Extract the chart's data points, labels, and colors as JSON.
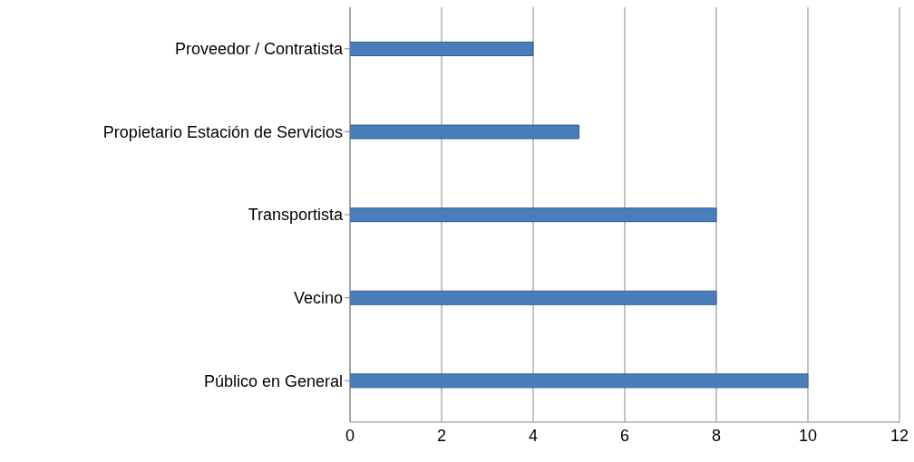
{
  "chart_data": {
    "type": "bar",
    "orientation": "horizontal",
    "categories": [
      "Proveedor / Contratista",
      "Propietario Estación de Servicios",
      "Transportista",
      "Vecino",
      "Público en General"
    ],
    "values": [
      4,
      5,
      8,
      8,
      10
    ],
    "color": "#4a7ebb",
    "xlim": [
      0,
      12
    ],
    "xticks": [
      0,
      2,
      4,
      6,
      8,
      10,
      12
    ],
    "grid": "x",
    "legend": false
  }
}
